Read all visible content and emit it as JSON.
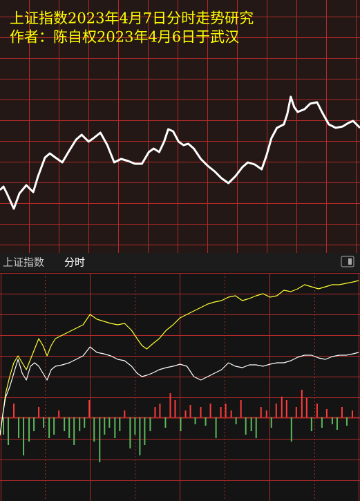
{
  "chart_data": [
    {
      "type": "line",
      "title": "上证指数2023年4月7日分时走势研究",
      "subtitle": "作者：陈自权2023年4月6日于武汉",
      "x": [
        0,
        5,
        10,
        20,
        28,
        38,
        48,
        55,
        65,
        72,
        80,
        90,
        100,
        110,
        118,
        128,
        135,
        145,
        155,
        165,
        175,
        185,
        195,
        205,
        215,
        222,
        230,
        237,
        243,
        250,
        258,
        265,
        272,
        280,
        290,
        300,
        310,
        320,
        330,
        340,
        350,
        358,
        368,
        378,
        385,
        392,
        400,
        410,
        415,
        420,
        425,
        430,
        440,
        448,
        458,
        465,
        475,
        485,
        495,
        503,
        510,
        520
      ],
      "xlim": [
        0,
        520
      ],
      "ylim": [
        0,
        365
      ],
      "grid": true,
      "series": [
        {
          "color": "#ffffff",
          "values": [
            90,
            95,
            85,
            63,
            85,
            97,
            87,
            110,
            137,
            143,
            137,
            130,
            147,
            163,
            170,
            160,
            165,
            173,
            155,
            130,
            135,
            132,
            128,
            128,
            145,
            150,
            145,
            160,
            178,
            175,
            160,
            155,
            157,
            150,
            135,
            125,
            117,
            107,
            100,
            110,
            123,
            130,
            127,
            120,
            140,
            165,
            180,
            185,
            200,
            225,
            210,
            203,
            207,
            215,
            217,
            203,
            185,
            180,
            182,
            187,
            190,
            180
          ]
        }
      ]
    },
    {
      "type": "intraday",
      "title": "上证指数",
      "subtitle": "分时",
      "x": [
        0,
        4,
        8,
        14,
        20,
        26,
        32,
        38,
        44,
        50,
        56,
        62,
        68,
        74,
        80,
        90,
        100,
        110,
        120,
        130,
        140,
        150,
        160,
        170,
        180,
        190,
        198,
        205,
        212,
        220,
        230,
        240,
        250,
        260,
        270,
        280,
        290,
        300,
        310,
        320,
        330,
        340,
        350,
        360,
        370,
        380,
        390,
        400,
        410,
        420,
        430,
        440,
        450,
        460,
        470,
        480,
        490,
        500,
        510,
        518
      ],
      "xlim": [
        0,
        520
      ],
      "ylim": [
        -121,
        209
      ],
      "grid": true,
      "series": [
        {
          "color": "#ffff33",
          "values": [
            -26,
            4,
            34,
            59,
            79,
            89,
            79,
            69,
            84,
            99,
            114,
            104,
            89,
            104,
            114,
            119,
            124,
            129,
            134,
            149,
            142,
            139,
            136,
            134,
            136,
            126,
            114,
            104,
            99,
            106,
            114,
            126,
            134,
            144,
            149,
            154,
            159,
            164,
            167,
            169,
            174,
            176,
            169,
            172,
            176,
            179,
            174,
            176,
            184,
            182,
            186,
            192,
            189,
            186,
            189,
            192,
            192,
            194,
            196,
            198
          ]
        },
        {
          "color": "#ffffff",
          "values": [
            -26,
            4,
            29,
            44,
            64,
            84,
            64,
            54,
            74,
            79,
            74,
            64,
            54,
            69,
            74,
            76,
            79,
            84,
            89,
            102,
            94,
            92,
            89,
            84,
            82,
            74,
            64,
            59,
            61,
            64,
            69,
            72,
            74,
            77,
            74,
            59,
            54,
            59,
            64,
            69,
            79,
            74,
            72,
            76,
            76,
            74,
            77,
            79,
            79,
            82,
            87,
            90,
            90,
            86,
            84,
            88,
            90,
            90,
            92,
            94
          ]
        }
      ],
      "bars": {
        "up_color": "#ff3c3c",
        "down_color": "#5cb85c",
        "x": [
          5,
          12,
          20,
          27,
          34,
          42,
          49,
          56,
          63,
          71,
          78,
          85,
          93,
          100,
          107,
          115,
          122,
          129,
          136,
          144,
          151,
          158,
          166,
          173,
          180,
          188,
          195,
          202,
          209,
          217,
          224,
          231,
          239,
          246,
          253,
          261,
          268,
          275,
          282,
          290,
          297,
          304,
          312,
          319,
          326,
          334,
          341,
          348,
          355,
          363,
          370,
          377,
          385,
          392,
          399,
          407,
          414,
          421,
          428,
          436,
          443,
          450,
          458,
          465,
          472,
          480,
          487,
          494,
          501,
          509
        ],
        "values": [
          -25,
          -40,
          20,
          -30,
          -55,
          -35,
          -20,
          15,
          -15,
          -30,
          -25,
          10,
          -20,
          -30,
          -40,
          -20,
          -15,
          25,
          -35,
          -65,
          -25,
          -15,
          -30,
          -20,
          10,
          -45,
          -25,
          -55,
          -40,
          -20,
          15,
          20,
          -15,
          35,
          25,
          -20,
          10,
          18,
          -10,
          15,
          -12,
          20,
          -30,
          15,
          20,
          10,
          -10,
          25,
          -25,
          -20,
          -30,
          15,
          10,
          -15,
          20,
          30,
          25,
          -35,
          15,
          40,
          28,
          -20,
          20,
          -15,
          12,
          -10,
          -18,
          15,
          -12,
          10
        ]
      }
    }
  ]
}
